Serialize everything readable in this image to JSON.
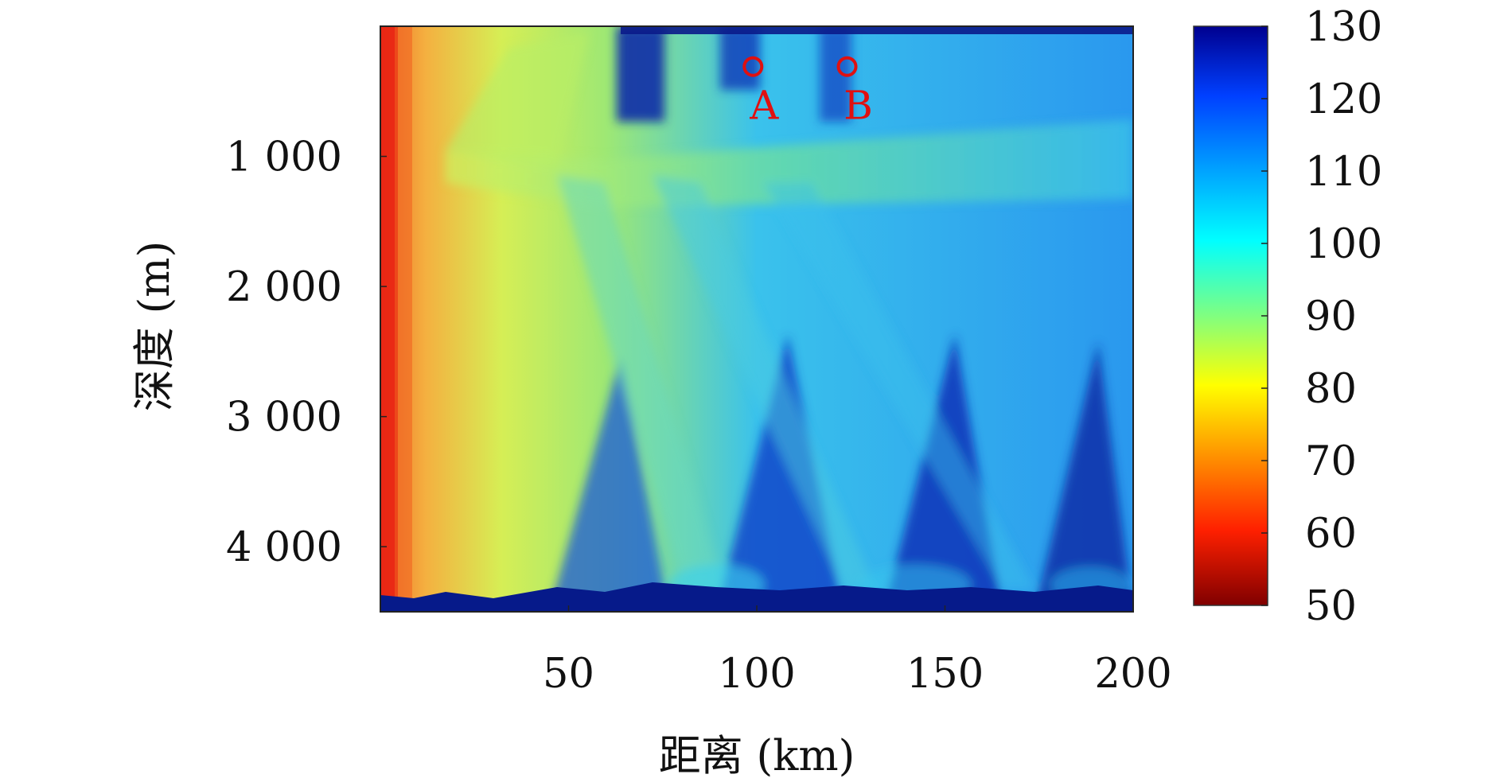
{
  "chart_data": {
    "type": "heatmap",
    "title": "",
    "xlabel": "距离 (km)",
    "ylabel": "深度 (m)",
    "xlim": [
      0,
      200
    ],
    "ylim": [
      0,
      4500
    ],
    "y_inverted": true,
    "x_ticks": [
      {
        "value": 50,
        "label": "50"
      },
      {
        "value": 100,
        "label": "100"
      },
      {
        "value": 150,
        "label": "150"
      },
      {
        "value": 200,
        "label": "200"
      }
    ],
    "y_ticks": [
      {
        "value": 1000,
        "label": "1 000"
      },
      {
        "value": 2000,
        "label": "2 000"
      },
      {
        "value": 3000,
        "label": "3 000"
      },
      {
        "value": 4000,
        "label": "4 000"
      }
    ],
    "colorbar": {
      "min": 50,
      "max": 130,
      "colormap": "jet-reversed",
      "ticks": [
        {
          "value": 130,
          "label": "130"
        },
        {
          "value": 120,
          "label": "120"
        },
        {
          "value": 110,
          "label": "110"
        },
        {
          "value": 100,
          "label": "100"
        },
        {
          "value": 90,
          "label": "90"
        },
        {
          "value": 80,
          "label": "80"
        },
        {
          "value": 70,
          "label": "70"
        },
        {
          "value": 60,
          "label": "60"
        },
        {
          "value": 50,
          "label": "50"
        }
      ]
    },
    "markers": [
      {
        "label": "A",
        "x": 99,
        "y": 310,
        "color": "#e01010"
      },
      {
        "label": "B",
        "x": 124,
        "y": 310,
        "color": "#e01010"
      }
    ],
    "colors": {
      "deep_blue": "#0a2a9a",
      "light_blue": "#2a9af0",
      "cyan": "#30d0e8",
      "green": "#8ee860",
      "yellow": "#e8f050",
      "orange": "#f5a030",
      "red": "#e01010"
    }
  }
}
